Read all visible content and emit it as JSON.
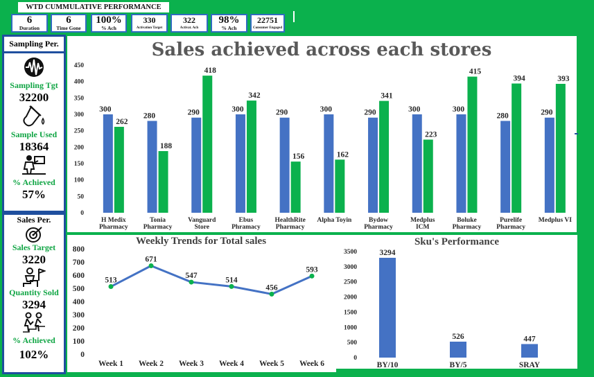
{
  "kpi": {
    "title": "WTD CUMMULATIVE PERFORMANCE",
    "cards": [
      {
        "value": "6",
        "label": "Duration"
      },
      {
        "value": "6",
        "label": "Time Gone"
      },
      {
        "value": "100%",
        "label": "% Ach"
      },
      {
        "value": "330",
        "label": "Activation Target"
      },
      {
        "value": "322",
        "label": "Activat. Ach"
      },
      {
        "value": "98%",
        "label": "% Ach"
      },
      {
        "value": "22751",
        "label": "Consumer Engaged"
      }
    ]
  },
  "sampling": {
    "heading": "Sampling Per.",
    "target_label": "Sampling Tgt",
    "target_value": "32200",
    "used_label": "Sample Used",
    "used_value": "18364",
    "achieved_label": "% Achieved",
    "achieved_value": "57%"
  },
  "sales": {
    "heading": "Sales  Per.",
    "target_label": "Sales Target",
    "target_value": "3220",
    "sold_label": "Quantity Sold",
    "sold_value": "3294",
    "achieved_label": "% Achieved",
    "achieved_value": "102%"
  },
  "colors": {
    "blue": "#4472c4",
    "green": "#0bb14d",
    "accent": "#1f4f9e"
  },
  "chart_data": [
    {
      "type": "bar",
      "title": "Sales achieved across each stores",
      "categories": [
        [
          "H Medix",
          "Pharmacy"
        ],
        [
          "Tonia",
          "Pharmacy"
        ],
        [
          "Vanguard",
          "Store"
        ],
        [
          "Ebus",
          "Phramacy"
        ],
        [
          "HealthRite",
          "Pharmacy"
        ],
        [
          "Alpha Toyin"
        ],
        [
          "Bydow",
          "Pharmacy"
        ],
        [
          "Medplus",
          "ICM"
        ],
        [
          "Boluke",
          "Pharmacy"
        ],
        [
          "Purelife",
          "Pharmacy"
        ],
        [
          "Medplus VI"
        ]
      ],
      "series": [
        {
          "values": [
            300,
            280,
            290,
            300,
            290,
            300,
            290,
            300,
            300,
            280,
            290
          ],
          "color": "#4472c4"
        },
        {
          "values": [
            262,
            188,
            418,
            342,
            156,
            162,
            341,
            223,
            415,
            394,
            393
          ],
          "color": "#0bb14d"
        }
      ],
      "yticks": [
        0,
        50,
        100,
        150,
        200,
        250,
        300,
        350,
        400,
        450
      ],
      "ylim": [
        0,
        450
      ]
    },
    {
      "type": "line",
      "title": "Weekly Trends for Total sales",
      "categories": [
        "Week 1",
        "Week 2",
        "Week 3",
        "Week 4",
        "Week 5",
        "Week 6"
      ],
      "values": [
        513,
        671,
        547,
        514,
        456,
        593
      ],
      "yticks": [
        0,
        100,
        200,
        300,
        400,
        500,
        600,
        700,
        800
      ],
      "ylim": [
        0,
        800
      ],
      "line_color": "#4472c4",
      "marker_color": "#0bb14d"
    },
    {
      "type": "bar",
      "title": "Sku's Performance",
      "categories": [
        "BY/10",
        "BY/5",
        "SRAY"
      ],
      "values": [
        3294,
        526,
        447
      ],
      "yticks": [
        0,
        500,
        1000,
        1500,
        2000,
        2500,
        3000,
        3500
      ],
      "ylim": [
        0,
        3500
      ],
      "color": "#4472c4"
    }
  ]
}
